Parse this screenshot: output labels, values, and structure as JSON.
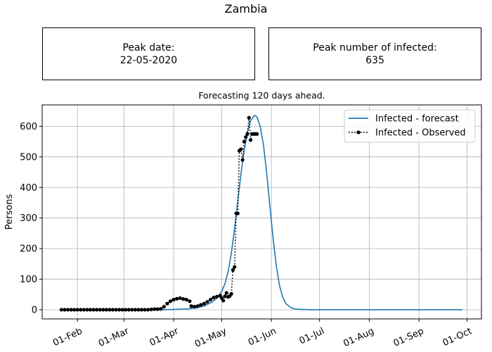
{
  "title": "Zambia",
  "peak_date_box": {
    "label": "Peak date:",
    "value": "22-05-2020"
  },
  "peak_infected_box": {
    "label": "Peak number of infected:",
    "value": "635"
  },
  "chart_data": {
    "type": "line",
    "title": "Forecasting 120 days ahead.",
    "xlabel": "",
    "ylabel": "Persons",
    "x_type": "date",
    "xlim": [
      "2020-01-10",
      "2020-10-10"
    ],
    "ylim": [
      -30,
      670
    ],
    "x_ticks": [
      "2020-02-01",
      "2020-03-01",
      "2020-04-01",
      "2020-05-01",
      "2020-06-01",
      "2020-07-01",
      "2020-08-01",
      "2020-09-01",
      "2020-10-01"
    ],
    "x_tick_labels": [
      "01-Feb",
      "01-Mar",
      "01-Apr",
      "01-May",
      "01-Jun",
      "01-Jul",
      "01-Aug",
      "01-Sep",
      "01-Oct"
    ],
    "y_ticks": [
      0,
      100,
      200,
      300,
      400,
      500,
      600
    ],
    "y_tick_labels": [
      "0",
      "100",
      "200",
      "300",
      "400",
      "500",
      "600"
    ],
    "grid": true,
    "legend_position": "top-right",
    "series": [
      {
        "name": "Infected - forecast",
        "style": "solid",
        "color": "#1f77b4",
        "points": [
          [
            "2020-01-22",
            0
          ],
          [
            "2020-03-01",
            0
          ],
          [
            "2020-03-15",
            0
          ],
          [
            "2020-03-25",
            0
          ],
          [
            "2020-04-01",
            1
          ],
          [
            "2020-04-10",
            3
          ],
          [
            "2020-04-15",
            6
          ],
          [
            "2020-04-20",
            12
          ],
          [
            "2020-04-25",
            25
          ],
          [
            "2020-04-28",
            38
          ],
          [
            "2020-05-01",
            60
          ],
          [
            "2020-05-03",
            85
          ],
          [
            "2020-05-05",
            125
          ],
          [
            "2020-05-07",
            185
          ],
          [
            "2020-05-09",
            265
          ],
          [
            "2020-05-11",
            355
          ],
          [
            "2020-05-13",
            445
          ],
          [
            "2020-05-15",
            520
          ],
          [
            "2020-05-17",
            580
          ],
          [
            "2020-05-19",
            618
          ],
          [
            "2020-05-21",
            633
          ],
          [
            "2020-05-22",
            635
          ],
          [
            "2020-05-23",
            630
          ],
          [
            "2020-05-25",
            600
          ],
          [
            "2020-05-27",
            540
          ],
          [
            "2020-05-29",
            450
          ],
          [
            "2020-05-31",
            340
          ],
          [
            "2020-06-02",
            235
          ],
          [
            "2020-06-04",
            145
          ],
          [
            "2020-06-06",
            80
          ],
          [
            "2020-06-08",
            42
          ],
          [
            "2020-06-10",
            20
          ],
          [
            "2020-06-13",
            7
          ],
          [
            "2020-06-16",
            2
          ],
          [
            "2020-06-25",
            0
          ],
          [
            "2020-07-15",
            0
          ],
          [
            "2020-08-15",
            0
          ],
          [
            "2020-09-15",
            0
          ],
          [
            "2020-09-28",
            0
          ]
        ]
      },
      {
        "name": "Infected - Observed",
        "style": "dotted",
        "marker": "circle",
        "color": "#000000",
        "points": [
          [
            "2020-01-22",
            0
          ],
          [
            "2020-01-24",
            0
          ],
          [
            "2020-01-26",
            0
          ],
          [
            "2020-01-28",
            0
          ],
          [
            "2020-01-30",
            0
          ],
          [
            "2020-02-01",
            0
          ],
          [
            "2020-02-03",
            0
          ],
          [
            "2020-02-05",
            0
          ],
          [
            "2020-02-07",
            0
          ],
          [
            "2020-02-09",
            0
          ],
          [
            "2020-02-11",
            0
          ],
          [
            "2020-02-13",
            0
          ],
          [
            "2020-02-15",
            0
          ],
          [
            "2020-02-17",
            0
          ],
          [
            "2020-02-19",
            0
          ],
          [
            "2020-02-21",
            0
          ],
          [
            "2020-02-23",
            0
          ],
          [
            "2020-02-25",
            0
          ],
          [
            "2020-02-27",
            0
          ],
          [
            "2020-02-29",
            0
          ],
          [
            "2020-03-02",
            0
          ],
          [
            "2020-03-04",
            0
          ],
          [
            "2020-03-06",
            0
          ],
          [
            "2020-03-08",
            0
          ],
          [
            "2020-03-10",
            0
          ],
          [
            "2020-03-12",
            0
          ],
          [
            "2020-03-14",
            0
          ],
          [
            "2020-03-16",
            0
          ],
          [
            "2020-03-18",
            1
          ],
          [
            "2020-03-20",
            2
          ],
          [
            "2020-03-22",
            2
          ],
          [
            "2020-03-24",
            3
          ],
          [
            "2020-03-26",
            10
          ],
          [
            "2020-03-28",
            20
          ],
          [
            "2020-03-30",
            28
          ],
          [
            "2020-04-01",
            33
          ],
          [
            "2020-04-03",
            36
          ],
          [
            "2020-04-05",
            38
          ],
          [
            "2020-04-07",
            35
          ],
          [
            "2020-04-09",
            33
          ],
          [
            "2020-04-11",
            28
          ],
          [
            "2020-04-12",
            12
          ],
          [
            "2020-04-14",
            10
          ],
          [
            "2020-04-16",
            12
          ],
          [
            "2020-04-18",
            16
          ],
          [
            "2020-04-20",
            20
          ],
          [
            "2020-04-22",
            26
          ],
          [
            "2020-04-24",
            33
          ],
          [
            "2020-04-26",
            40
          ],
          [
            "2020-04-28",
            43
          ],
          [
            "2020-04-30",
            46
          ],
          [
            "2020-05-01",
            38
          ],
          [
            "2020-05-02",
            30
          ],
          [
            "2020-05-03",
            44
          ],
          [
            "2020-05-04",
            55
          ],
          [
            "2020-05-05",
            42
          ],
          [
            "2020-05-06",
            45
          ],
          [
            "2020-05-07",
            52
          ],
          [
            "2020-05-08",
            130
          ],
          [
            "2020-05-09",
            140
          ],
          [
            "2020-05-10",
            315
          ],
          [
            "2020-05-11",
            315
          ],
          [
            "2020-05-12",
            520
          ],
          [
            "2020-05-13",
            525
          ],
          [
            "2020-05-14",
            490
          ],
          [
            "2020-05-15",
            550
          ],
          [
            "2020-05-16",
            565
          ],
          [
            "2020-05-17",
            575
          ],
          [
            "2020-05-18",
            628
          ],
          [
            "2020-05-19",
            555
          ],
          [
            "2020-05-20",
            575
          ],
          [
            "2020-05-21",
            575
          ],
          [
            "2020-05-22",
            575
          ],
          [
            "2020-05-23",
            575
          ]
        ]
      }
    ]
  }
}
